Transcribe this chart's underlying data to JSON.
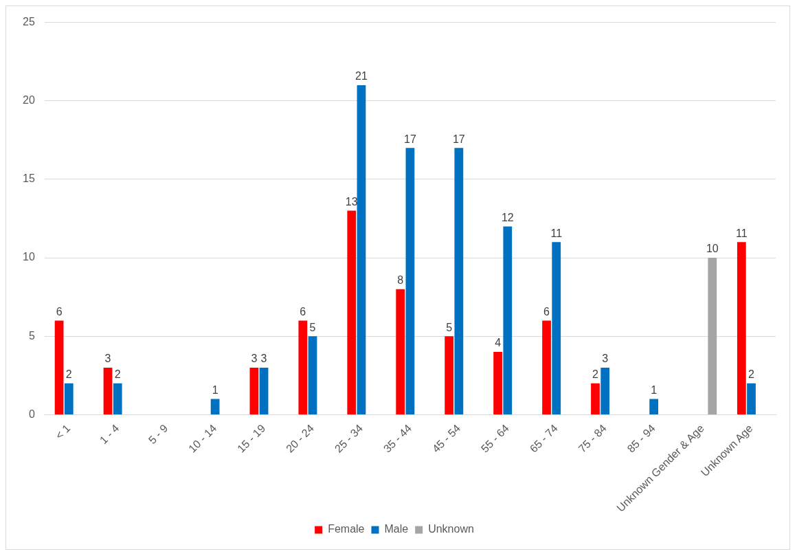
{
  "chart_data": {
    "type": "bar",
    "categories": [
      "< 1",
      "1 - 4",
      "5 - 9",
      "10 - 14",
      "15 - 19",
      "20 - 24",
      "25 - 34",
      "35 - 44",
      "45 - 54",
      "55 - 64",
      "65 - 74",
      "75 - 84",
      "85 - 94",
      "Unknown Gender & Age",
      "Unknown Age"
    ],
    "series": [
      {
        "name": "Female",
        "color": "#ff0000",
        "values": [
          6,
          3,
          null,
          null,
          3,
          6,
          13,
          8,
          5,
          4,
          6,
          2,
          null,
          null,
          11
        ]
      },
      {
        "name": "Male",
        "color": "#0070c0",
        "values": [
          2,
          2,
          null,
          1,
          3,
          5,
          21,
          17,
          17,
          12,
          11,
          3,
          1,
          null,
          2
        ]
      },
      {
        "name": "Unknown",
        "color": "#a5a5a5",
        "values": [
          null,
          null,
          null,
          null,
          null,
          null,
          null,
          null,
          null,
          null,
          null,
          null,
          null,
          10,
          null
        ]
      }
    ],
    "ylim": [
      0,
      25
    ],
    "yticks": [
      0,
      5,
      10,
      15,
      20,
      25
    ],
    "grid": "y",
    "legend": "bottom",
    "data_labels": true
  }
}
